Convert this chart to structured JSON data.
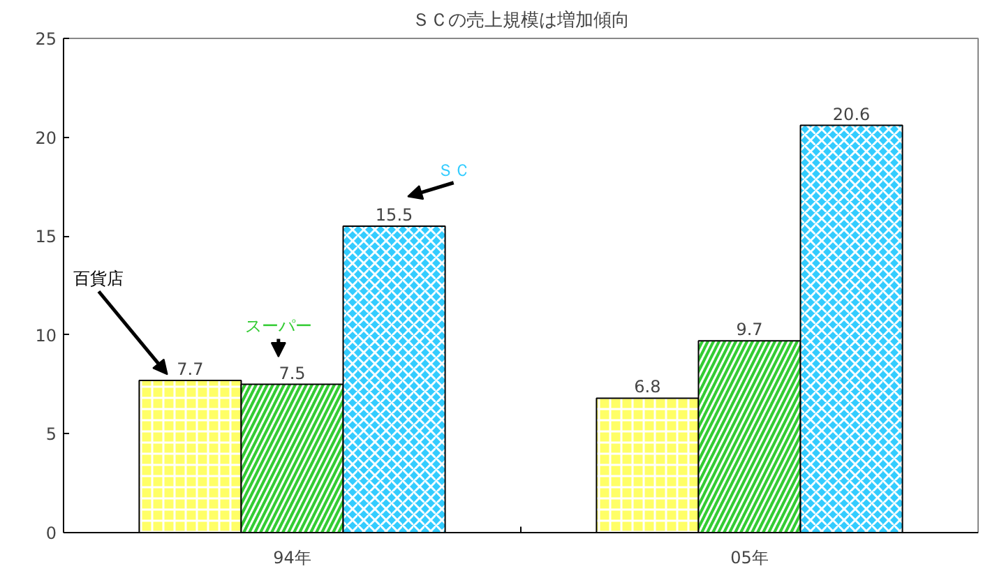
{
  "chart_data": {
    "type": "bar",
    "title": "ＳＣの売上規模は増加傾向",
    "categories": [
      "94年",
      "05年"
    ],
    "series": [
      {
        "name": "百貨店",
        "color": "#ffff66",
        "values": [
          7.7,
          6.8
        ]
      },
      {
        "name": "スーパー",
        "color": "#33cc33",
        "values": [
          7.5,
          9.7
        ]
      },
      {
        "name": "ＳＣ",
        "color": "#33ccff",
        "values": [
          15.5,
          20.6
        ]
      }
    ],
    "ylim": [
      0,
      25
    ],
    "yticks": [
      0,
      5,
      10,
      15,
      20,
      25
    ],
    "grid": false,
    "legend": false,
    "data_labels": true
  }
}
